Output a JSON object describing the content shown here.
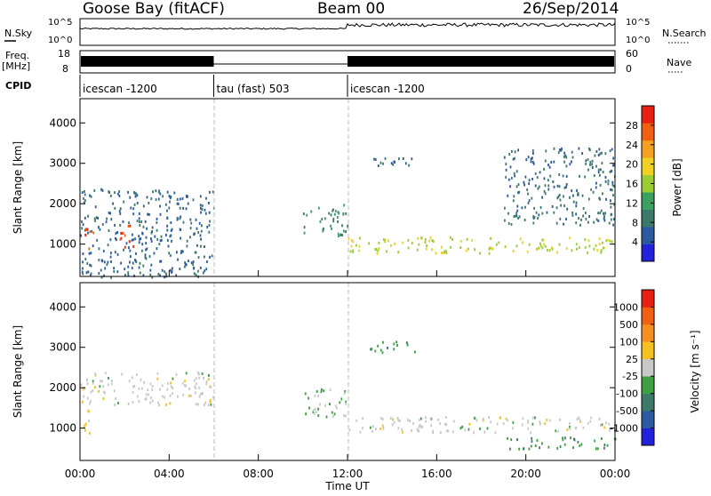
{
  "header": {
    "station": "Goose Bay (fitACF)",
    "beam": "Beam 00",
    "date": "26/Sep/2014"
  },
  "noise_panel": {
    "left_label": "N.Sky",
    "right_label": "N.Search",
    "left_ticks": [
      "10^5",
      "10^0"
    ],
    "right_ticks": [
      "10^5",
      "10^0"
    ]
  },
  "freq_panel": {
    "left_label_line1": "Freq.",
    "left_label_line2": "[MHz]",
    "left_ticks": [
      "18",
      "8"
    ],
    "right_label": "Nave",
    "right_ticks": [
      "60",
      "0"
    ]
  },
  "cpid_panel": {
    "label": "CPID",
    "segments": [
      {
        "name": "icescan -1200",
        "start_hour": 0,
        "end_hour": 6
      },
      {
        "name": "tau (fast) 503",
        "start_hour": 6,
        "end_hour": 12
      },
      {
        "name": "icescan -1200",
        "start_hour": 12,
        "end_hour": 24
      }
    ]
  },
  "time_axis": {
    "label": "Time UT",
    "ticks": [
      "00:00",
      "04:00",
      "08:00",
      "12:00",
      "16:00",
      "20:00",
      "00:00"
    ]
  },
  "power_panel": {
    "ylabel": "Slant Range [km]",
    "yticks": [
      "1000",
      "2000",
      "3000",
      "4000"
    ],
    "colorbar_label": "Power [dB]",
    "colorbar_ticks": [
      "28",
      "24",
      "20",
      "16",
      "12",
      "8",
      "4"
    ],
    "colors": [
      "#2222dd",
      "#2c5aa0",
      "#3b7a6a",
      "#3aa060",
      "#9acd32",
      "#f0d020",
      "#f5a020",
      "#f06010",
      "#e82010"
    ]
  },
  "velocity_panel": {
    "ylabel": "Slant Range [km]",
    "yticks": [
      "1000",
      "2000",
      "3000",
      "4000"
    ],
    "colorbar_label": "Velocity [m s⁻¹]",
    "colorbar_ticks": [
      "1000",
      "500",
      "100",
      "25",
      "-25",
      "-100",
      "-500",
      "-1000"
    ],
    "colors": [
      "#2222dd",
      "#2c5aa0",
      "#3b7a6a",
      "#3ca040",
      "#c8c8c8",
      "#f5c020",
      "#f59020",
      "#f06010",
      "#e82010"
    ]
  },
  "chart_data": [
    {
      "type": "heatmap",
      "title": "Power [dB]",
      "xlabel": "Time UT",
      "ylabel": "Slant Range [km]",
      "xlim": [
        0,
        24
      ],
      "ylim": [
        200,
        4600
      ],
      "zlim": [
        0,
        30
      ],
      "features": [
        {
          "t0": 0.0,
          "t1": 6.0,
          "r0": 200,
          "r1": 2400,
          "level": 6
        },
        {
          "t0": 0.2,
          "t1": 0.6,
          "r0": 800,
          "r1": 1400,
          "level": 25
        },
        {
          "t0": 1.7,
          "t1": 2.4,
          "r0": 900,
          "r1": 1500,
          "level": 27
        },
        {
          "t0": 10.0,
          "t1": 12.0,
          "r0": 1200,
          "r1": 2000,
          "level": 10
        },
        {
          "t0": 12.0,
          "t1": 24.0,
          "r0": 800,
          "r1": 1200,
          "level": 16
        },
        {
          "t0": 13.0,
          "t1": 15.0,
          "r0": 2900,
          "r1": 3200,
          "level": 6
        },
        {
          "t0": 19.0,
          "t1": 24.0,
          "r0": 1500,
          "r1": 3400,
          "level": 7
        }
      ]
    },
    {
      "type": "heatmap",
      "title": "Velocity",
      "xlabel": "Time UT",
      "ylabel": "Slant Range [km]",
      "xlim": [
        0,
        24
      ],
      "ylim": [
        200,
        4600
      ],
      "zlim": [
        -1000,
        1000
      ],
      "features": [
        {
          "t0": 0.0,
          "t1": 6.0,
          "r0": 1600,
          "r1": 2400,
          "level": 0
        },
        {
          "t0": 0.1,
          "t1": 0.6,
          "r0": 900,
          "r1": 1500,
          "level": 150
        },
        {
          "t0": 10.0,
          "t1": 12.0,
          "r0": 1300,
          "r1": 2000,
          "level": -150
        },
        {
          "t0": 12.0,
          "t1": 24.0,
          "r0": 900,
          "r1": 1300,
          "level": 0
        },
        {
          "t0": 13.0,
          "t1": 15.0,
          "r0": 2900,
          "r1": 3200,
          "level": -300
        },
        {
          "t0": 19.0,
          "t1": 24.0,
          "r0": 500,
          "r1": 800,
          "level": -300
        }
      ]
    }
  ]
}
